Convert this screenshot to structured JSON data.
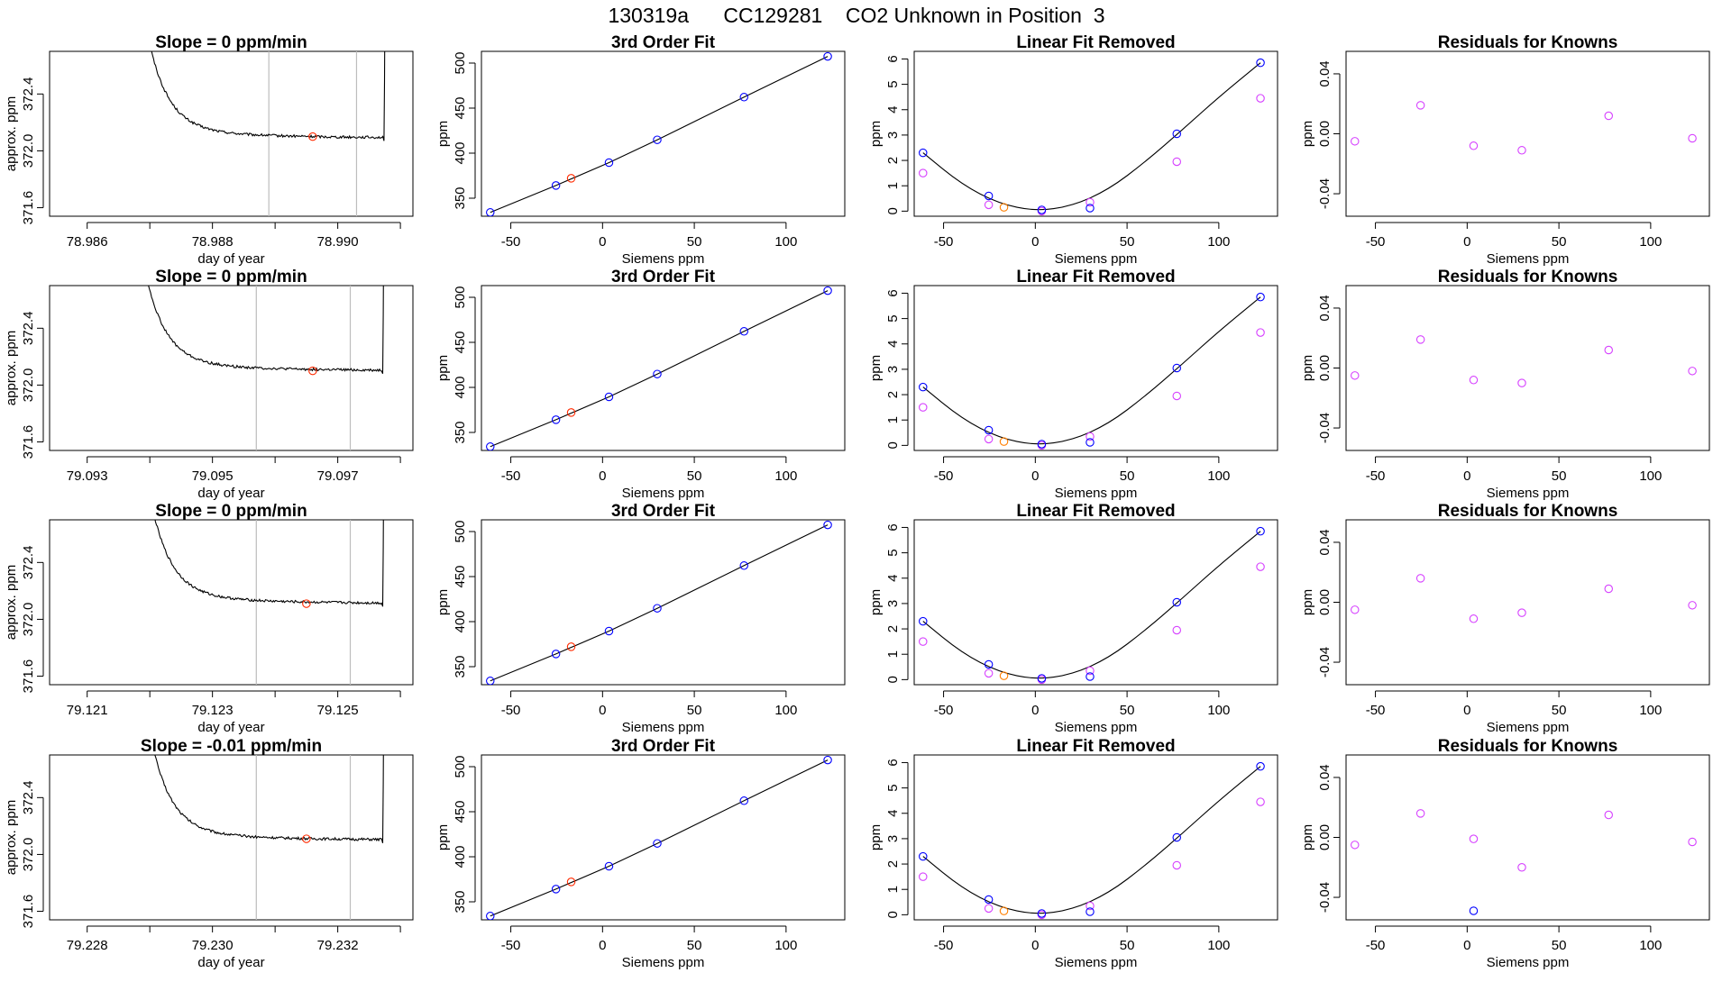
{
  "title": "130319a      CC129281    CO2 Unknown in Position  3",
  "colors": {
    "trace": "#000000",
    "vline": "#bdbdbd",
    "known": "#0000ff",
    "unknown": "#ff2a00",
    "unknown_quad": "#ff7f00",
    "linear_removed": "#d640ff",
    "residual": "#d640ff"
  },
  "rows": [
    {
      "trace": {
        "type": "line",
        "title": "Slope =  0  ppm/min",
        "xlabel": "day of year",
        "ylabel": "approx. ppm",
        "xlim": [
          78.9854,
          78.9912
        ],
        "ylim": [
          371.54,
          372.7
        ],
        "xticks": [
          78.986,
          78.987,
          78.988,
          78.989,
          78.99,
          78.991
        ],
        "xtick_labels": [
          "78.986",
          "",
          "78.988",
          "",
          "78.990",
          ""
        ],
        "yticks": [
          371.6,
          372.0,
          372.4
        ],
        "ytick_labels": [
          "371.6",
          "372.0",
          "372.4"
        ],
        "vlines": [
          78.9889,
          78.9903
        ],
        "trace_start": 78.98685,
        "trace_end": 78.99072,
        "settle_level": 372.09,
        "marker": {
          "x": 78.9896,
          "y": 372.1
        }
      },
      "fit": {
        "type": "scatter",
        "title": "3rd Order Fit",
        "xlabel": "Siemens ppm",
        "ylabel": "ppm",
        "xlim": [
          -66,
          132
        ],
        "ylim": [
          330,
          513
        ],
        "xticks": [
          -50,
          0,
          50,
          100
        ],
        "yticks": [
          350,
          400,
          450,
          500
        ],
        "knowns": [
          [
            -61.2,
            334.2
          ],
          [
            -25.4,
            364.1
          ],
          [
            3.5,
            389.5
          ],
          [
            29.8,
            414.8
          ],
          [
            77.1,
            462.2
          ],
          [
            122.7,
            507.4
          ]
        ],
        "unknown": [
          -17.1,
          372.1
        ]
      },
      "linear": {
        "type": "scatter",
        "title": "Linear Fit Removed",
        "xlabel": "Siemens ppm",
        "ylabel": "ppm",
        "xlim": [
          -66,
          132
        ],
        "ylim": [
          -0.2,
          6.3
        ],
        "xticks": [
          -50,
          0,
          50,
          100
        ],
        "yticks": [
          0,
          1,
          2,
          3,
          4,
          5,
          6
        ],
        "knowns": [
          [
            -61.2,
            2.3
          ],
          [
            -25.4,
            0.6
          ],
          [
            3.5,
            0.05
          ],
          [
            29.8,
            0.12
          ],
          [
            77.1,
            3.05
          ],
          [
            122.7,
            5.85
          ]
        ],
        "removed": [
          [
            -61.2,
            1.5
          ],
          [
            -25.4,
            0.25
          ],
          [
            3.5,
            0.0
          ],
          [
            29.8,
            0.35
          ],
          [
            77.1,
            1.95
          ],
          [
            122.7,
            4.45
          ]
        ],
        "unknown": [
          -17.1,
          0.15
        ],
        "curve": [
          [
            -61.2,
            2.3
          ],
          [
            -40,
            1.05
          ],
          [
            -20,
            0.3
          ],
          [
            0,
            0.0
          ],
          [
            20,
            0.2
          ],
          [
            40,
            0.85
          ],
          [
            60,
            1.95
          ],
          [
            80,
            3.2
          ],
          [
            100,
            4.5
          ],
          [
            122.7,
            5.85
          ]
        ]
      },
      "residuals": {
        "type": "scatter",
        "title": "Residuals for Knowns",
        "xlabel": "Siemens ppm",
        "ylabel": "ppm",
        "xlim": [
          -66,
          132
        ],
        "ylim": [
          -0.055,
          0.055
        ],
        "xticks": [
          -50,
          0,
          50,
          100
        ],
        "yticks": [
          -0.04,
          0.0,
          0.04
        ],
        "ytick_labels": [
          "-0.04",
          "0.00",
          "0.04"
        ],
        "points": [
          [
            -61.2,
            -0.005
          ],
          [
            -25.4,
            0.019
          ],
          [
            3.5,
            -0.008
          ],
          [
            29.8,
            -0.011
          ],
          [
            77.1,
            0.012
          ],
          [
            122.7,
            -0.003
          ]
        ],
        "blue_points": []
      }
    },
    {
      "trace": {
        "type": "line",
        "title": "Slope =  0  ppm/min",
        "xlabel": "day of year",
        "ylabel": "approx. ppm",
        "xlim": [
          79.0924,
          79.0982
        ],
        "ylim": [
          371.54,
          372.7
        ],
        "xticks": [
          79.093,
          79.094,
          79.095,
          79.096,
          79.097,
          79.098
        ],
        "xtick_labels": [
          "79.093",
          "",
          "79.095",
          "",
          "79.097",
          ""
        ],
        "yticks": [
          371.6,
          372.0,
          372.4
        ],
        "ytick_labels": [
          "371.6",
          "372.0",
          "372.4"
        ],
        "vlines": [
          79.0957,
          79.0972
        ],
        "trace_start": 79.0938,
        "trace_end": 79.0977,
        "settle_level": 372.1,
        "marker": {
          "x": 79.0966,
          "y": 372.1
        }
      },
      "fit": {
        "type": "scatter",
        "title": "3rd Order Fit",
        "xlabel": "Siemens ppm",
        "ylabel": "ppm",
        "xlim": [
          -66,
          132
        ],
        "ylim": [
          330,
          513
        ],
        "xticks": [
          -50,
          0,
          50,
          100
        ],
        "yticks": [
          350,
          400,
          450,
          500
        ],
        "knowns": [
          [
            -61.2,
            334.2
          ],
          [
            -25.4,
            364.1
          ],
          [
            3.5,
            389.5
          ],
          [
            29.8,
            414.8
          ],
          [
            77.1,
            462.2
          ],
          [
            122.7,
            507.4
          ]
        ],
        "unknown": [
          -17.1,
          372.1
        ]
      },
      "linear": {
        "type": "scatter",
        "title": "Linear Fit Removed",
        "xlabel": "Siemens ppm",
        "ylabel": "ppm",
        "xlim": [
          -66,
          132
        ],
        "ylim": [
          -0.2,
          6.3
        ],
        "xticks": [
          -50,
          0,
          50,
          100
        ],
        "yticks": [
          0,
          1,
          2,
          3,
          4,
          5,
          6
        ],
        "knowns": [
          [
            -61.2,
            2.3
          ],
          [
            -25.4,
            0.6
          ],
          [
            3.5,
            0.05
          ],
          [
            29.8,
            0.12
          ],
          [
            77.1,
            3.05
          ],
          [
            122.7,
            5.85
          ]
        ],
        "removed": [
          [
            -61.2,
            1.5
          ],
          [
            -25.4,
            0.25
          ],
          [
            3.5,
            0.0
          ],
          [
            29.8,
            0.35
          ],
          [
            77.1,
            1.95
          ],
          [
            122.7,
            4.45
          ]
        ],
        "unknown": [
          -17.1,
          0.15
        ],
        "curve": [
          [
            -61.2,
            2.3
          ],
          [
            -40,
            1.05
          ],
          [
            -20,
            0.3
          ],
          [
            0,
            0.0
          ],
          [
            20,
            0.2
          ],
          [
            40,
            0.85
          ],
          [
            60,
            1.95
          ],
          [
            80,
            3.2
          ],
          [
            100,
            4.5
          ],
          [
            122.7,
            5.85
          ]
        ]
      },
      "residuals": {
        "type": "scatter",
        "title": "Residuals for Knowns",
        "xlabel": "Siemens ppm",
        "ylabel": "ppm",
        "xlim": [
          -66,
          132
        ],
        "ylim": [
          -0.055,
          0.055
        ],
        "xticks": [
          -50,
          0,
          50,
          100
        ],
        "yticks": [
          -0.04,
          0.0,
          0.04
        ],
        "ytick_labels": [
          "-0.04",
          "0.00",
          "0.04"
        ],
        "points": [
          [
            -61.2,
            -0.005
          ],
          [
            -25.4,
            0.019
          ],
          [
            3.5,
            -0.008
          ],
          [
            29.8,
            -0.01
          ],
          [
            77.1,
            0.012
          ],
          [
            122.7,
            -0.002
          ]
        ],
        "blue_points": []
      }
    },
    {
      "trace": {
        "type": "line",
        "title": "Slope =  0  ppm/min",
        "xlabel": "day of year",
        "ylabel": "approx. ppm",
        "xlim": [
          79.1204,
          79.1262
        ],
        "ylim": [
          371.54,
          372.7
        ],
        "xticks": [
          79.121,
          79.122,
          79.123,
          79.124,
          79.125,
          79.126
        ],
        "xtick_labels": [
          "79.121",
          "",
          "79.123",
          "",
          "79.125",
          ""
        ],
        "yticks": [
          371.6,
          372.0,
          372.4
        ],
        "ytick_labels": [
          "371.6",
          "372.0",
          "372.4"
        ],
        "vlines": [
          79.1237,
          79.1252
        ],
        "trace_start": 79.1219,
        "trace_end": 79.1257,
        "settle_level": 372.11,
        "marker": {
          "x": 79.1245,
          "y": 372.11
        }
      },
      "fit": {
        "type": "scatter",
        "title": "3rd Order Fit",
        "xlabel": "Siemens ppm",
        "ylabel": "ppm",
        "xlim": [
          -66,
          132
        ],
        "ylim": [
          330,
          513
        ],
        "xticks": [
          -50,
          0,
          50,
          100
        ],
        "yticks": [
          350,
          400,
          450,
          500
        ],
        "knowns": [
          [
            -61.2,
            334.2
          ],
          [
            -25.4,
            364.1
          ],
          [
            3.5,
            389.5
          ],
          [
            29.8,
            414.8
          ],
          [
            77.1,
            462.2
          ],
          [
            122.7,
            507.4
          ]
        ],
        "unknown": [
          -17.1,
          372.1
        ]
      },
      "linear": {
        "type": "scatter",
        "title": "Linear Fit Removed",
        "xlabel": "Siemens ppm",
        "ylabel": "ppm",
        "xlim": [
          -66,
          132
        ],
        "ylim": [
          -0.2,
          6.3
        ],
        "xticks": [
          -50,
          0,
          50,
          100
        ],
        "yticks": [
          0,
          1,
          2,
          3,
          4,
          5,
          6
        ],
        "knowns": [
          [
            -61.2,
            2.3
          ],
          [
            -25.4,
            0.6
          ],
          [
            3.5,
            0.05
          ],
          [
            29.8,
            0.12
          ],
          [
            77.1,
            3.05
          ],
          [
            122.7,
            5.85
          ]
        ],
        "removed": [
          [
            -61.2,
            1.5
          ],
          [
            -25.4,
            0.25
          ],
          [
            3.5,
            0.0
          ],
          [
            29.8,
            0.35
          ],
          [
            77.1,
            1.95
          ],
          [
            122.7,
            4.45
          ]
        ],
        "unknown": [
          -17.1,
          0.15
        ],
        "curve": [
          [
            -61.2,
            2.3
          ],
          [
            -40,
            1.05
          ],
          [
            -20,
            0.3
          ],
          [
            0,
            0.0
          ],
          [
            20,
            0.2
          ],
          [
            40,
            0.85
          ],
          [
            60,
            1.95
          ],
          [
            80,
            3.2
          ],
          [
            100,
            4.5
          ],
          [
            122.7,
            5.85
          ]
        ]
      },
      "residuals": {
        "type": "scatter",
        "title": "Residuals for Knowns",
        "xlabel": "Siemens ppm",
        "ylabel": "ppm",
        "xlim": [
          -66,
          132
        ],
        "ylim": [
          -0.055,
          0.055
        ],
        "xticks": [
          -50,
          0,
          50,
          100
        ],
        "yticks": [
          -0.04,
          0.0,
          0.04
        ],
        "ytick_labels": [
          "-0.04",
          "0.00",
          "0.04"
        ],
        "points": [
          [
            -61.2,
            -0.005
          ],
          [
            -25.4,
            0.016
          ],
          [
            3.5,
            -0.011
          ],
          [
            29.8,
            -0.007
          ],
          [
            77.1,
            0.009
          ],
          [
            122.7,
            -0.002
          ]
        ],
        "blue_points": []
      }
    },
    {
      "trace": {
        "type": "line",
        "title": "Slope =  -0.01  ppm/min",
        "xlabel": "day of year",
        "ylabel": "approx. ppm",
        "xlim": [
          79.2274,
          79.2332
        ],
        "ylim": [
          371.54,
          372.7
        ],
        "xticks": [
          79.228,
          79.229,
          79.23,
          79.231,
          79.232,
          79.233
        ],
        "xtick_labels": [
          "79.228",
          "",
          "79.230",
          "",
          "79.232",
          ""
        ],
        "yticks": [
          371.6,
          372.0,
          372.4
        ],
        "ytick_labels": [
          "371.6",
          "372.0",
          "372.4"
        ],
        "vlines": [
          79.2307,
          79.2322
        ],
        "trace_start": 79.2289,
        "trace_end": 79.2327,
        "settle_level": 372.1,
        "marker": {
          "x": 79.2315,
          "y": 372.11
        }
      },
      "fit": {
        "type": "scatter",
        "title": "3rd Order Fit",
        "xlabel": "Siemens ppm",
        "ylabel": "ppm",
        "xlim": [
          -66,
          132
        ],
        "ylim": [
          330,
          513
        ],
        "xticks": [
          -50,
          0,
          50,
          100
        ],
        "yticks": [
          350,
          400,
          450,
          500
        ],
        "knowns": [
          [
            -61.2,
            334.2
          ],
          [
            -25.4,
            364.1
          ],
          [
            3.5,
            389.5
          ],
          [
            29.8,
            414.8
          ],
          [
            77.1,
            462.2
          ],
          [
            122.7,
            507.4
          ]
        ],
        "unknown": [
          -17.1,
          372.1
        ]
      },
      "linear": {
        "type": "scatter",
        "title": "Linear Fit Removed",
        "xlabel": "Siemens ppm",
        "ylabel": "ppm",
        "xlim": [
          -66,
          132
        ],
        "ylim": [
          -0.2,
          6.3
        ],
        "xticks": [
          -50,
          0,
          50,
          100
        ],
        "yticks": [
          0,
          1,
          2,
          3,
          4,
          5,
          6
        ],
        "knowns": [
          [
            -61.2,
            2.3
          ],
          [
            -25.4,
            0.6
          ],
          [
            3.5,
            0.05
          ],
          [
            29.8,
            0.12
          ],
          [
            77.1,
            3.05
          ],
          [
            122.7,
            5.85
          ]
        ],
        "removed": [
          [
            -61.2,
            1.5
          ],
          [
            -25.4,
            0.25
          ],
          [
            3.5,
            0.0
          ],
          [
            29.8,
            0.35
          ],
          [
            77.1,
            1.95
          ],
          [
            122.7,
            4.45
          ]
        ],
        "unknown": [
          -17.1,
          0.15
        ],
        "curve": [
          [
            -61.2,
            2.3
          ],
          [
            -40,
            1.05
          ],
          [
            -20,
            0.3
          ],
          [
            0,
            0.0
          ],
          [
            20,
            0.2
          ],
          [
            40,
            0.85
          ],
          [
            60,
            1.95
          ],
          [
            80,
            3.2
          ],
          [
            100,
            4.5
          ],
          [
            122.7,
            5.85
          ]
        ]
      },
      "residuals": {
        "type": "scatter",
        "title": "Residuals for Knowns",
        "xlabel": "Siemens ppm",
        "ylabel": "ppm",
        "xlim": [
          -66,
          132
        ],
        "ylim": [
          -0.055,
          0.055
        ],
        "xticks": [
          -50,
          0,
          50,
          100
        ],
        "yticks": [
          -0.04,
          0.0,
          0.04
        ],
        "ytick_labels": [
          "-0.04",
          "0.00",
          "0.04"
        ],
        "points": [
          [
            -61.2,
            -0.005
          ],
          [
            -25.4,
            0.016
          ],
          [
            3.5,
            -0.001
          ],
          [
            29.8,
            -0.02
          ],
          [
            77.1,
            0.015
          ],
          [
            122.7,
            -0.003
          ]
        ],
        "blue_points": [
          [
            3.5,
            -0.049
          ]
        ]
      }
    }
  ]
}
